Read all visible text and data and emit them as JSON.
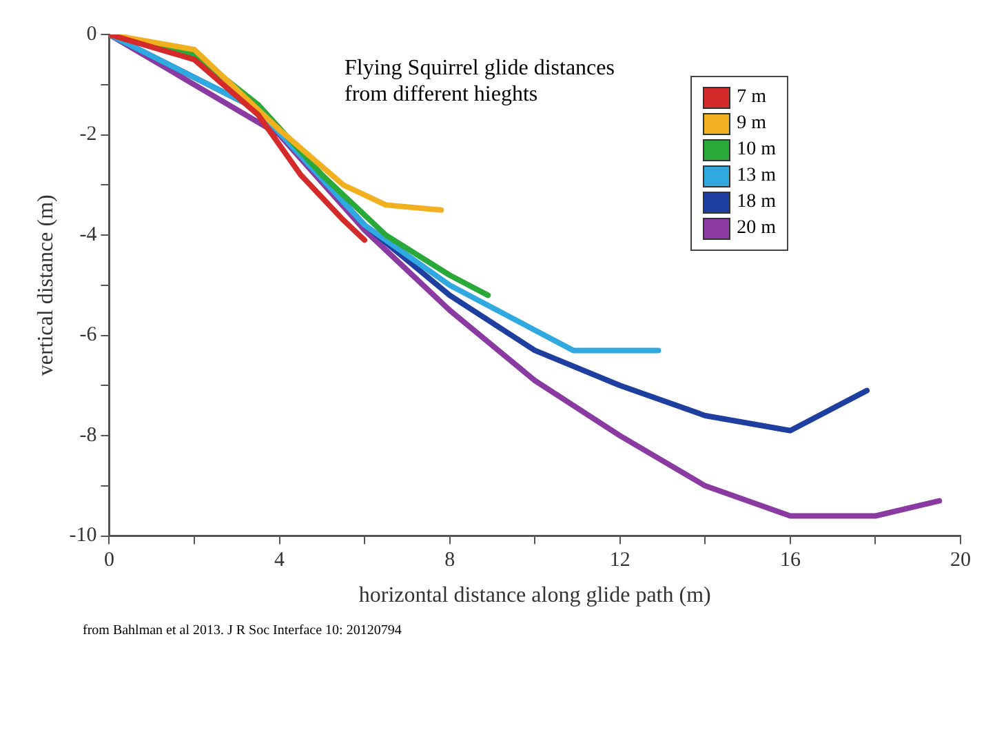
{
  "chart_data": {
    "type": "line",
    "title": "Flying Squirrel glide distances from different hieghts",
    "xlabel": "horizontal distance along glide path (m)",
    "ylabel": "vertical distance (m)",
    "annotations": [
      "from Bahlman et al 2013.  J R Soc Interface 10: 20120794"
    ],
    "xlim": [
      0,
      20
    ],
    "ylim": [
      -10,
      0
    ],
    "xticks": [
      0,
      {
        "value": 2,
        "label": null
      },
      4,
      {
        "value": 6,
        "label": null
      },
      8,
      {
        "value": 10,
        "label": null
      },
      12,
      {
        "value": 14,
        "label": null
      },
      16,
      {
        "value": 18,
        "label": null
      },
      20
    ],
    "yticks": [
      0,
      {
        "value": -1,
        "label": null
      },
      -2,
      {
        "value": -3,
        "label": null
      },
      -4,
      {
        "value": -5,
        "label": null
      },
      -6,
      {
        "value": -7,
        "label": null
      },
      -8,
      {
        "value": -9,
        "label": null
      },
      -10
    ],
    "grid": false,
    "legend": "top right",
    "marker": "none",
    "line_style": "solid",
    "series": [
      {
        "name": "7 m",
        "color": "#d42a2a",
        "x": [
          0,
          2,
          3.5,
          4.5,
          5.5,
          6
        ],
        "values": [
          0,
          -0.5,
          -1.6,
          -2.8,
          -3.7,
          -4.1
        ]
      },
      {
        "name": "9 m",
        "color": "#f0b020",
        "x": [
          0,
          2,
          4,
          5.5,
          6.5,
          7.8
        ],
        "values": [
          0,
          -0.3,
          -1.9,
          -3.0,
          -3.4,
          -3.5
        ]
      },
      {
        "name": "10 m",
        "color": "#2aa83a",
        "x": [
          0,
          2,
          3.5,
          5,
          6.5,
          8,
          8.9
        ],
        "values": [
          0,
          -0.4,
          -1.4,
          -2.8,
          -4.0,
          -4.8,
          -5.2
        ]
      },
      {
        "name": "13 m",
        "color": "#30a8e0",
        "x": [
          0,
          3.5,
          6,
          8,
          10.9,
          12.9
        ],
        "values": [
          0,
          -1.5,
          -3.8,
          -5.0,
          -6.3,
          -6.3
        ]
      },
      {
        "name": "18 m",
        "color": "#1e3ea0",
        "x": [
          0,
          3.5,
          6,
          8,
          10,
          12,
          14,
          16,
          17.8
        ],
        "values": [
          0,
          -1.5,
          -3.8,
          -5.2,
          -6.3,
          -7.0,
          -7.6,
          -7.9,
          -7.1
        ]
      },
      {
        "name": "20 m",
        "color": "#8a3aa0",
        "x": [
          0,
          4,
          6,
          8,
          10,
          12,
          14,
          16,
          18,
          19.5
        ],
        "values": [
          0,
          -2,
          -3.9,
          -5.5,
          -6.9,
          -8.0,
          -9.0,
          -9.6,
          -9.6,
          -9.3
        ]
      }
    ]
  }
}
